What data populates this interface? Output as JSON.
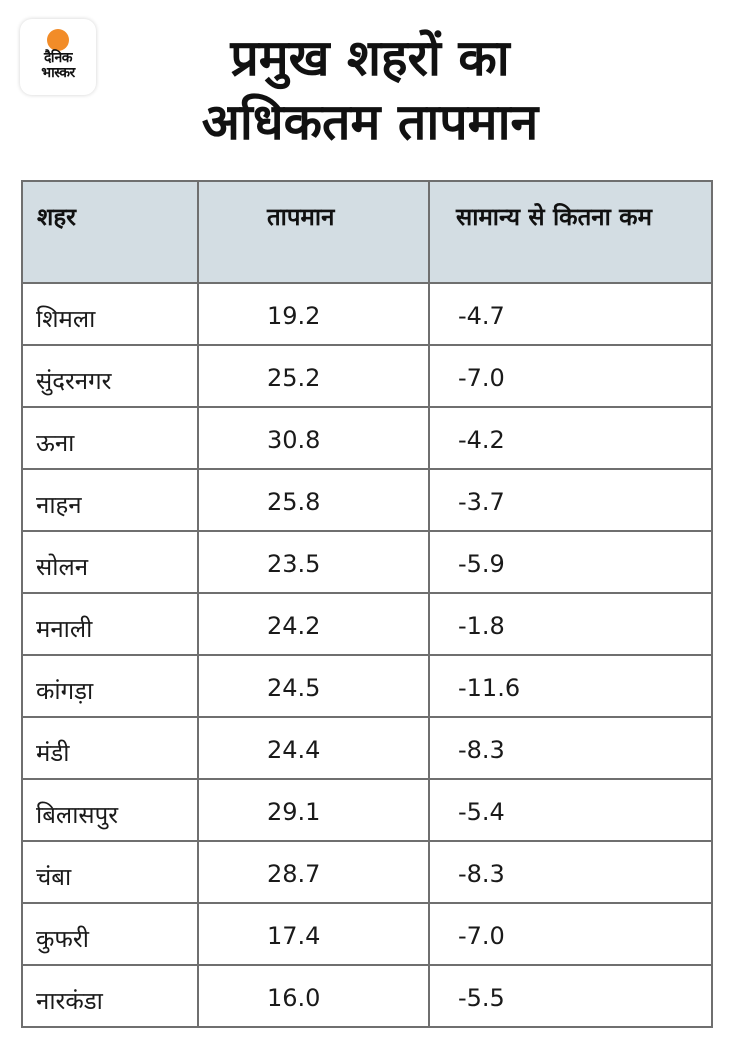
{
  "logo": {
    "line1": "दैनिक",
    "line2": "भास्कर",
    "accent_color": "#f28c28"
  },
  "title": {
    "line1": "प्रमुख शहरों का",
    "line2": "अधिकतम तापमान"
  },
  "table": {
    "header_bg": "#d3dde3",
    "columns": [
      "शहर",
      "तापमान",
      "सामान्य से कितना कम"
    ],
    "rows": [
      {
        "city": "शिमला",
        "temp": "19.2",
        "diff": "-4.7"
      },
      {
        "city": "सुंदरनगर",
        "temp": "25.2",
        "diff": "-7.0"
      },
      {
        "city": "ऊना",
        "temp": "30.8",
        "diff": "-4.2"
      },
      {
        "city": "नाहन",
        "temp": "25.8",
        "diff": "-3.7"
      },
      {
        "city": "सोलन",
        "temp": "23.5",
        "diff": "-5.9"
      },
      {
        "city": "मनाली",
        "temp": "24.2",
        "diff": "-1.8"
      },
      {
        "city": "कांगड़ा",
        "temp": "24.5",
        "diff": "-11.6"
      },
      {
        "city": "मंडी",
        "temp": "24.4",
        "diff": "-8.3"
      },
      {
        "city": "बिलासपुर",
        "temp": "29.1",
        "diff": "-5.4"
      },
      {
        "city": "चंबा",
        "temp": "28.7",
        "diff": "-8.3"
      },
      {
        "city": "कुफरी",
        "temp": "17.4",
        "diff": "-7.0"
      },
      {
        "city": "नारकंडा",
        "temp": "16.0",
        "diff": "-5.5"
      }
    ]
  }
}
